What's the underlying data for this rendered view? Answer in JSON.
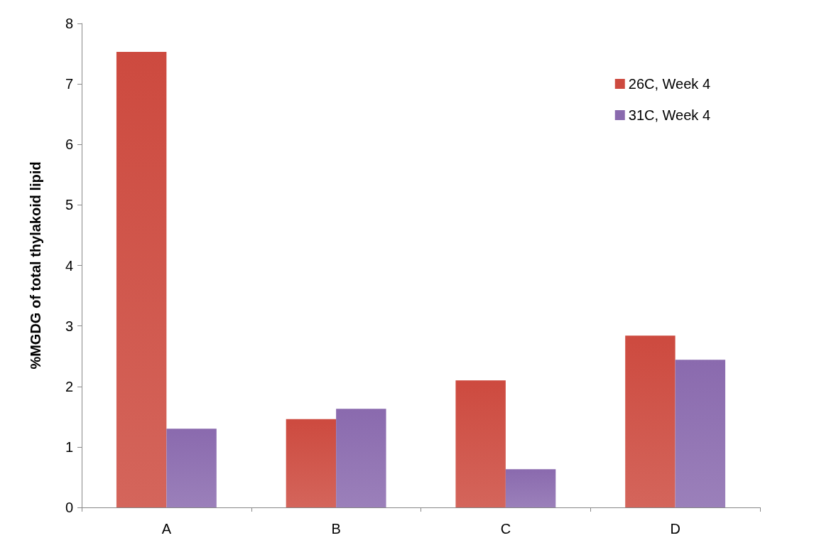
{
  "chart_data": {
    "type": "bar",
    "ylabel": "%MGDG of total thylakoid lipid",
    "categories": [
      "A",
      "B",
      "C",
      "D"
    ],
    "series": [
      {
        "name": "26C, Week 4",
        "color": "#cd4a3f",
        "values": [
          7.53,
          1.46,
          2.1,
          2.84
        ]
      },
      {
        "name": "31C, Week 4",
        "color": "#8a6aae",
        "values": [
          1.3,
          1.63,
          0.63,
          2.44
        ]
      }
    ],
    "ylim": [
      0,
      8
    ],
    "yticks": [
      0,
      1,
      2,
      3,
      4,
      5,
      6,
      7,
      8
    ],
    "grid": false,
    "legend": "top right"
  }
}
